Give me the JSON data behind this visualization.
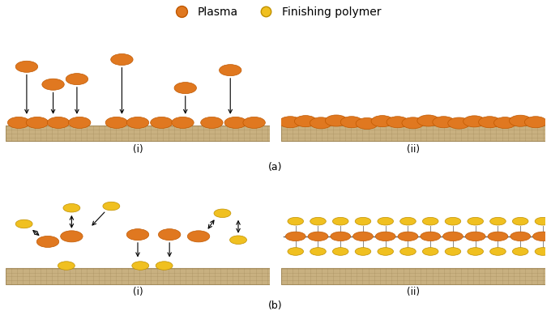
{
  "fig_width": 6.8,
  "fig_height": 3.84,
  "dpi": 100,
  "background": "#ffffff",
  "plasma_color": "#E07820",
  "plasma_edge": "#C05800",
  "polymer_color": "#F0C020",
  "polymer_edge": "#C09000",
  "fabric_color": "#C8B080",
  "fabric_edge": "#A89060",
  "fabric_line": "#9A8050",
  "legend_plasma": "Plasma",
  "legend_polymer": "Finishing polymer",
  "label_a": "(a)",
  "label_b": "(b)",
  "label_i": "(i)",
  "label_ii": "(ii)"
}
